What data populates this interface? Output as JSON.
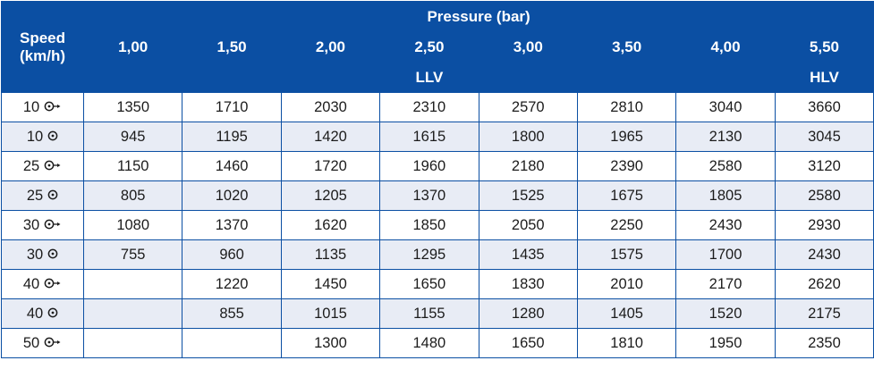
{
  "header": {
    "speed_label": "Speed (km/h)",
    "pressure_label": "Pressure (bar)",
    "pressures": [
      "1,00",
      "1,50",
      "2,00",
      "2,50",
      "3,00",
      "3,50",
      "4,00",
      "5,50"
    ],
    "class_llv": "LLV",
    "class_hlv": "HLV"
  },
  "rows": [
    {
      "speed": "10",
      "mode": "driven-icon",
      "values": [
        "1350",
        "1710",
        "2030",
        "2310",
        "2570",
        "2810",
        "3040",
        "3660"
      ]
    },
    {
      "speed": "10",
      "mode": "free-rolling-icon",
      "values": [
        "945",
        "1195",
        "1420",
        "1615",
        "1800",
        "1965",
        "2130",
        "3045"
      ]
    },
    {
      "speed": "25",
      "mode": "driven-icon",
      "values": [
        "1150",
        "1460",
        "1720",
        "1960",
        "2180",
        "2390",
        "2580",
        "3120"
      ]
    },
    {
      "speed": "25",
      "mode": "free-rolling-icon",
      "values": [
        "805",
        "1020",
        "1205",
        "1370",
        "1525",
        "1675",
        "1805",
        "2580"
      ]
    },
    {
      "speed": "30",
      "mode": "driven-icon",
      "values": [
        "1080",
        "1370",
        "1620",
        "1850",
        "2050",
        "2250",
        "2430",
        "2930"
      ]
    },
    {
      "speed": "30",
      "mode": "free-rolling-icon",
      "values": [
        "755",
        "960",
        "1135",
        "1295",
        "1435",
        "1575",
        "1700",
        "2430"
      ]
    },
    {
      "speed": "40",
      "mode": "driven-icon",
      "values": [
        "",
        "1220",
        "1450",
        "1650",
        "1830",
        "2010",
        "2170",
        "2620"
      ]
    },
    {
      "speed": "40",
      "mode": "free-rolling-icon",
      "values": [
        "",
        "855",
        "1015",
        "1155",
        "1280",
        "1405",
        "1520",
        "2175"
      ]
    },
    {
      "speed": "50",
      "mode": "driven-icon",
      "values": [
        "",
        "",
        "1300",
        "1480",
        "1650",
        "1810",
        "1950",
        "2350"
      ]
    }
  ],
  "colors": {
    "header_bg": "#0b4fa3",
    "stripe_bg": "#e8ecf5"
  }
}
